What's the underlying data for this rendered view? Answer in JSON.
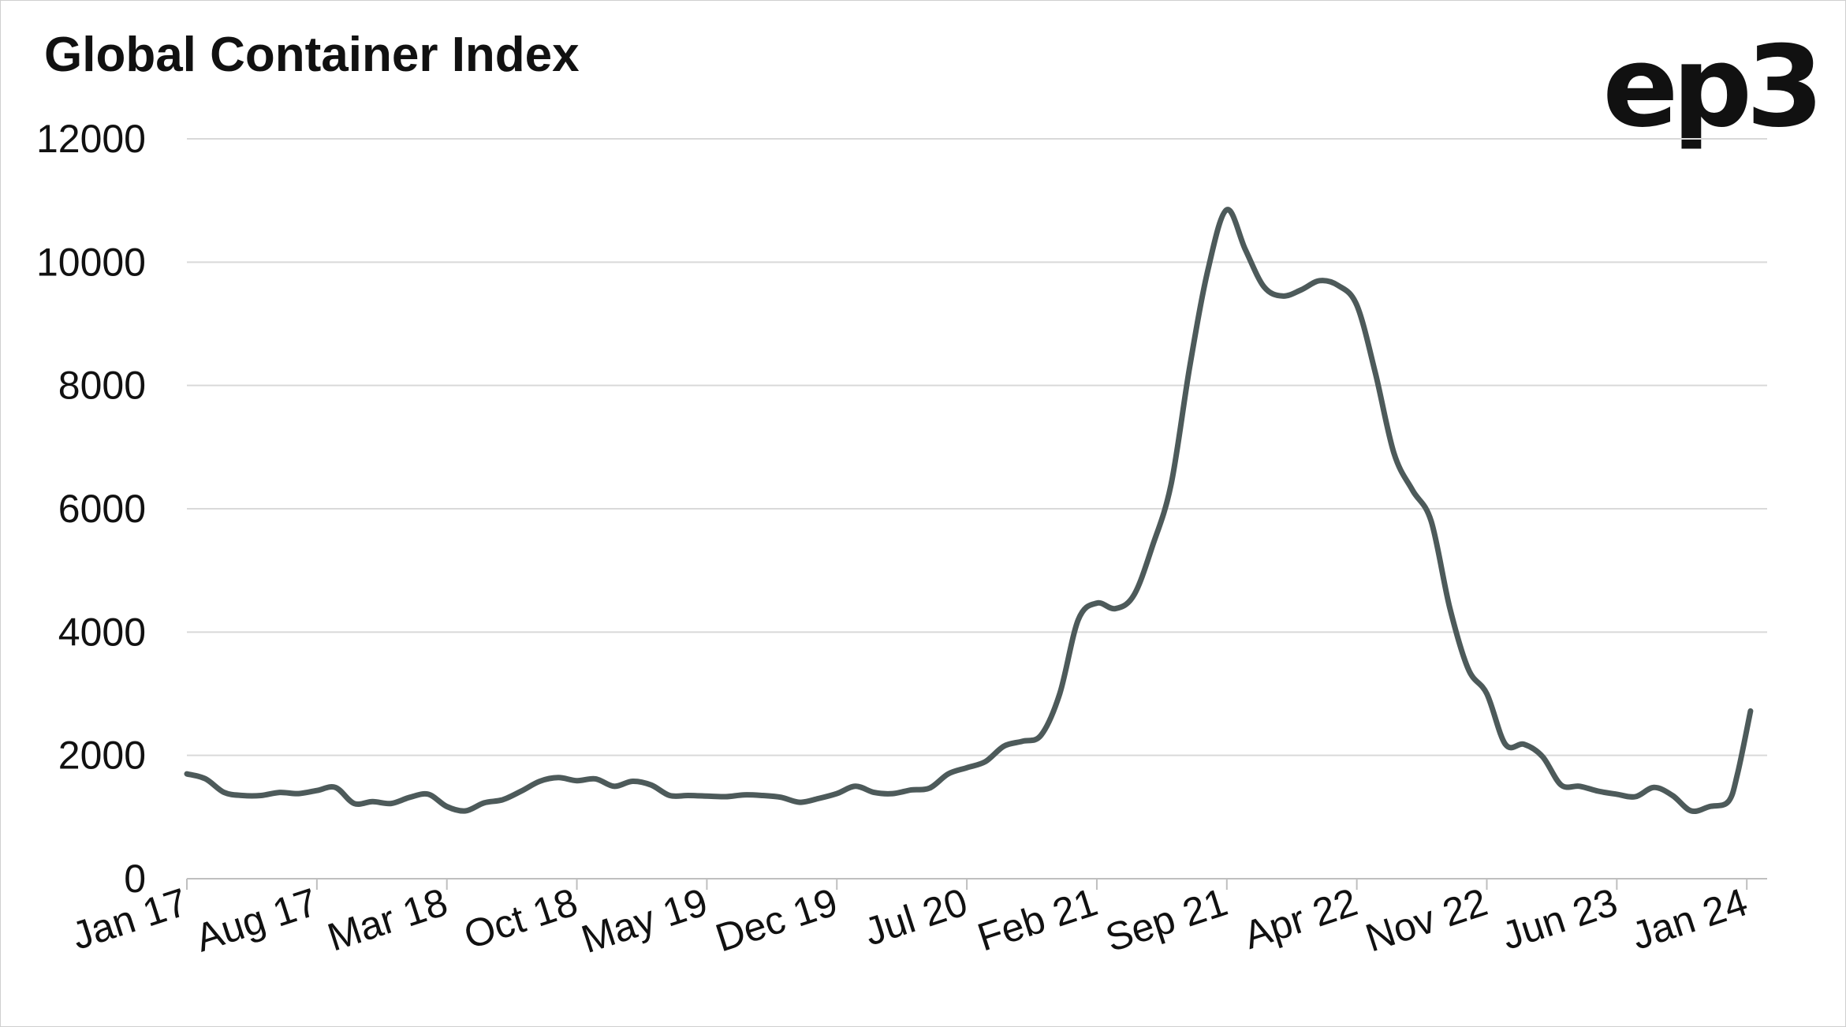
{
  "brand": {
    "logo_text": "ep3"
  },
  "colors": {
    "line": "#4d5a5a",
    "grid": "#d9d9d9",
    "axis": "#bfbfbf",
    "text": "#111111"
  },
  "chart_data": {
    "type": "line",
    "title": "Global Container Index",
    "xlabel": "",
    "ylabel": "",
    "ylim": [
      0,
      12000
    ],
    "yticks": [
      0,
      2000,
      4000,
      6000,
      8000,
      10000,
      12000
    ],
    "x_tick_labels": [
      "Jan 17",
      "Aug 17",
      "Mar 18",
      "Oct 18",
      "May 19",
      "Dec 19",
      "Jul 20",
      "Feb 21",
      "Sep 21",
      "Apr 22",
      "Nov 22",
      "Jun 23",
      "Jan 24"
    ],
    "x_tick_months": [
      0,
      7,
      14,
      21,
      28,
      35,
      42,
      49,
      56,
      63,
      70,
      77,
      84
    ],
    "xlim_months": [
      0,
      84.2
    ],
    "grid": true,
    "legend": "none",
    "series": [
      {
        "month_offset": [
          0,
          1,
          2,
          3,
          4,
          5,
          6,
          7,
          8,
          9,
          10,
          11,
          12,
          13,
          14,
          15,
          16,
          17,
          18,
          19,
          20,
          21,
          22,
          23,
          24,
          25,
          26,
          27,
          28,
          29,
          30,
          31,
          32,
          33,
          34,
          35,
          36,
          37,
          38,
          39,
          40,
          41,
          42,
          43,
          44,
          45,
          46,
          47,
          48,
          49,
          50,
          51,
          52,
          53,
          54,
          55,
          56,
          57,
          58,
          59,
          60,
          61,
          62,
          63,
          64,
          65,
          66,
          67,
          68,
          69,
          70,
          71,
          72,
          73,
          74,
          75,
          76,
          77,
          78,
          79,
          80,
          81,
          82,
          83,
          83.5,
          84.2
        ],
        "values": [
          1700,
          1620,
          1400,
          1350,
          1350,
          1400,
          1380,
          1430,
          1480,
          1220,
          1250,
          1220,
          1320,
          1370,
          1170,
          1100,
          1230,
          1280,
          1420,
          1580,
          1640,
          1590,
          1620,
          1500,
          1580,
          1520,
          1350,
          1350,
          1340,
          1330,
          1360,
          1350,
          1320,
          1240,
          1300,
          1380,
          1500,
          1400,
          1380,
          1440,
          1470,
          1700,
          1800,
          1900,
          2150,
          2230,
          2330,
          3000,
          4200,
          4470,
          4380,
          4600,
          5400,
          6400,
          8300,
          9900,
          10850,
          10200,
          9600,
          9450,
          9550,
          9700,
          9620,
          9300,
          8200,
          6900,
          6300,
          5800,
          4400,
          3400,
          3000,
          2180,
          2180,
          1980,
          1520,
          1500,
          1420,
          1370,
          1330,
          1480,
          1350,
          1100,
          1170,
          1250,
          1700,
          2720
        ]
      }
    ]
  }
}
